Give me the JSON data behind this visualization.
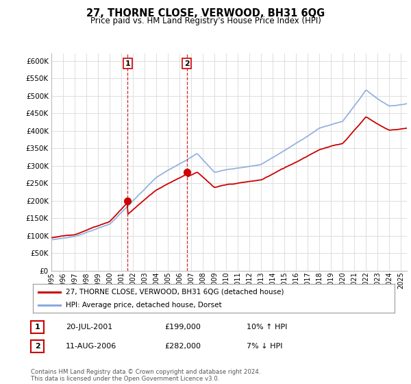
{
  "title": "27, THORNE CLOSE, VERWOOD, BH31 6QG",
  "subtitle": "Price paid vs. HM Land Registry's House Price Index (HPI)",
  "legend_label_red": "27, THORNE CLOSE, VERWOOD, BH31 6QG (detached house)",
  "legend_label_blue": "HPI: Average price, detached house, Dorset",
  "footer": "Contains HM Land Registry data © Crown copyright and database right 2024.\nThis data is licensed under the Open Government Licence v3.0.",
  "transactions": [
    {
      "num": 1,
      "date": "20-JUL-2001",
      "price": 199000,
      "hpi_change": "10% ↑ HPI",
      "year": 2001.55
    },
    {
      "num": 2,
      "date": "11-AUG-2006",
      "price": 282000,
      "hpi_change": "7% ↓ HPI",
      "year": 2006.62
    }
  ],
  "vline_color": "#cc0000",
  "marker_color": "#cc0000",
  "red_line_color": "#cc0000",
  "blue_line_color": "#88aadd",
  "background_color": "#ffffff",
  "grid_color": "#dddddd",
  "ylim": [
    0,
    620000
  ],
  "yticks": [
    0,
    50000,
    100000,
    150000,
    200000,
    250000,
    300000,
    350000,
    400000,
    450000,
    500000,
    550000,
    600000
  ],
  "xlim_start": 1995.0,
  "xlim_end": 2025.5,
  "xtick_years": [
    1995,
    1996,
    1997,
    1998,
    1999,
    2000,
    2001,
    2002,
    2003,
    2004,
    2005,
    2006,
    2007,
    2008,
    2009,
    2010,
    2011,
    2012,
    2013,
    2014,
    2015,
    2016,
    2017,
    2018,
    2019,
    2020,
    2021,
    2022,
    2023,
    2024,
    2025
  ]
}
